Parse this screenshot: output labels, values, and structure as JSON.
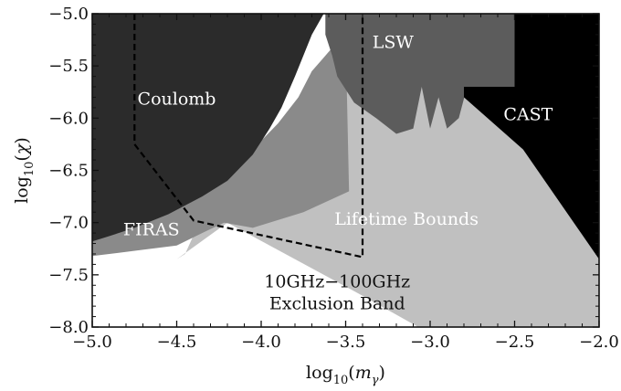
{
  "chart_data": {
    "type": "area",
    "xlim": [
      -5.0,
      -2.0
    ],
    "ylim": [
      -8.0,
      -5.0
    ],
    "x_ticks": [
      "−5.0",
      "−4.5",
      "−4.0",
      "−3.5",
      "−3.0",
      "−2.5",
      "−2.0"
    ],
    "y_ticks": [
      "−8.0",
      "−7.5",
      "−7.0",
      "−6.5",
      "−6.0",
      "−5.5",
      "−5.0"
    ],
    "xlabel": {
      "prefix": "log",
      "sub": "10",
      "open": "(",
      "var": "m",
      "var_sub": "γ",
      "close": ")"
    },
    "ylabel": {
      "prefix": "log",
      "sub": "10",
      "open": "(",
      "var": "χ",
      "close": ")"
    },
    "colors": {
      "coulomb": "#2b2b2b",
      "cast": "#000000",
      "lsw": "#5c5c5c",
      "firas": "#8a8a8a",
      "lifetime": "#c0c0c0",
      "background": "#ffffff",
      "dashed": "#000000"
    },
    "regions": [
      {
        "label": "Lifetime Bounds",
        "color": "#c0c0c0",
        "label_color": "#ffffff",
        "label_at": [
          -3.14,
          -7.02
        ],
        "outline": [
          [
            -4.45,
            -7.3
          ],
          [
            -4.4,
            -7.12
          ],
          [
            -4.0,
            -6.6
          ],
          [
            -3.7,
            -5.55
          ],
          [
            -2.8,
            -5.55
          ],
          [
            -2.8,
            -5.8
          ],
          [
            -2.45,
            -6.3
          ],
          [
            -2.0,
            -7.35
          ],
          [
            -2.0,
            -8.0
          ],
          [
            -3.07,
            -8.0
          ],
          [
            -3.4,
            -7.7
          ],
          [
            -4.2,
            -7.0
          ],
          [
            -4.5,
            -7.35
          ]
        ]
      },
      {
        "label": "FIRAS",
        "color": "#8a8a8a",
        "label_color": "#ffffff",
        "label_at": [
          -4.65,
          -7.12
        ],
        "outline": [
          [
            -5.0,
            -7.18
          ],
          [
            -4.85,
            -7.05
          ],
          [
            -4.65,
            -6.9
          ],
          [
            -4.45,
            -6.7
          ],
          [
            -4.25,
            -6.55
          ],
          [
            -4.05,
            -6.3
          ],
          [
            -3.9,
            -6.05
          ],
          [
            -3.78,
            -5.8
          ],
          [
            -3.7,
            -5.55
          ],
          [
            -3.63,
            -5.42
          ],
          [
            -3.55,
            -5.27
          ],
          [
            -3.5,
            -5.22
          ],
          [
            -3.48,
            -6.7
          ],
          [
            -3.75,
            -6.9
          ],
          [
            -4.05,
            -7.05
          ],
          [
            -4.22,
            -7.0
          ],
          [
            -4.35,
            -7.1
          ],
          [
            -4.5,
            -7.22
          ],
          [
            -4.7,
            -7.26
          ],
          [
            -5.0,
            -7.32
          ]
        ]
      },
      {
        "label": "LSW",
        "color": "#5c5c5c",
        "label_color": "#ffffff",
        "label_at": [
          -3.22,
          -5.33
        ],
        "outline": [
          [
            -3.62,
            -5.0
          ],
          [
            -2.5,
            -5.0
          ],
          [
            -2.5,
            -5.7
          ],
          [
            -2.79,
            -5.75
          ],
          [
            -2.83,
            -6.0
          ],
          [
            -2.9,
            -6.1
          ],
          [
            -2.95,
            -5.8
          ],
          [
            -3.0,
            -6.1
          ],
          [
            -3.05,
            -5.7
          ],
          [
            -3.1,
            -6.1
          ],
          [
            -3.2,
            -6.15
          ],
          [
            -3.32,
            -6.0
          ],
          [
            -3.45,
            -5.85
          ],
          [
            -3.55,
            -5.6
          ],
          [
            -3.58,
            -5.4
          ],
          [
            -3.62,
            -5.2
          ]
        ]
      },
      {
        "label": "CAST",
        "color": "#000000",
        "label_color": "#ffffff",
        "label_at": [
          -2.42,
          -6.02
        ],
        "outline": [
          [
            -2.5,
            -5.0
          ],
          [
            -2.0,
            -5.0
          ],
          [
            -2.0,
            -7.35
          ],
          [
            -2.45,
            -6.3
          ],
          [
            -2.8,
            -5.8
          ],
          [
            -2.8,
            -5.7
          ],
          [
            -2.5,
            -5.7
          ]
        ]
      },
      {
        "label": "Coulomb",
        "color": "#2b2b2b",
        "label_color": "#ffffff",
        "label_at": [
          -4.5,
          -5.87
        ],
        "outline": [
          [
            -5.0,
            -5.0
          ],
          [
            -3.63,
            -5.0
          ],
          [
            -3.7,
            -5.2
          ],
          [
            -3.8,
            -5.6
          ],
          [
            -3.88,
            -5.9
          ],
          [
            -3.95,
            -6.1
          ],
          [
            -4.05,
            -6.35
          ],
          [
            -4.2,
            -6.6
          ],
          [
            -4.35,
            -6.75
          ],
          [
            -4.55,
            -6.92
          ],
          [
            -4.75,
            -7.05
          ],
          [
            -4.9,
            -7.13
          ],
          [
            -5.0,
            -7.18
          ]
        ]
      }
    ],
    "exclusion_band": {
      "label_lines": [
        "10GHz−100GHz",
        "Exclusion Band"
      ],
      "label_at": [
        -3.55,
        -7.62
      ],
      "outline": [
        [
          -4.75,
          -5.0
        ],
        [
          -4.75,
          -6.25
        ],
        [
          -4.4,
          -6.98
        ],
        [
          -3.4,
          -7.33
        ],
        [
          -3.4,
          -5.0
        ]
      ]
    },
    "legend": "none",
    "grid": false
  }
}
